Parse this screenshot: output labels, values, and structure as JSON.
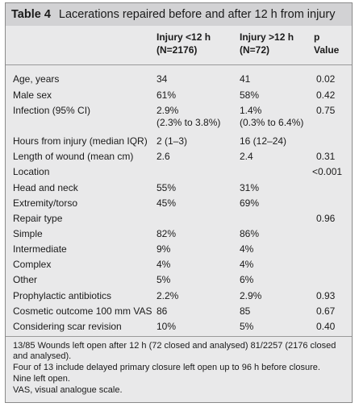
{
  "table": {
    "label": "Table 4",
    "title": "Lacerations repaired before and after 12 h from injury",
    "headers": {
      "col1_line1": "Injury <12 h",
      "col1_line2": "(N=2176)",
      "col2_line1": "Injury >12 h",
      "col2_line2": "(N=72)",
      "col3_line1": "p",
      "col3_line2": "Value"
    },
    "rows": [
      {
        "label": "Age, years",
        "v1": "34",
        "v2": "41",
        "p": "0.02"
      },
      {
        "label": "Male sex",
        "v1": "61%",
        "v2": "58%",
        "p": "0.42"
      },
      {
        "label": "Infection (95% CI)",
        "v1": "2.9%",
        "v1b": "(2.3% to 3.8%)",
        "v2": "1.4%",
        "v2b": "(0.3% to 6.4%)",
        "p": "0.75"
      },
      {
        "label": "Hours from injury (median IQR)",
        "v1": "2 (1–3)",
        "v2": "16 (12–24)",
        "p": ""
      },
      {
        "label": "Length of wound (mean cm)",
        "v1": "2.6",
        "v2": "2.4",
        "p": "0.31"
      },
      {
        "label": "Location",
        "v1": "",
        "v2": "",
        "p": "<0.001"
      },
      {
        "label": "Head and neck",
        "v1": "55%",
        "v2": "31%",
        "p": ""
      },
      {
        "label": "Extremity/torso",
        "v1": "45%",
        "v2": "69%",
        "p": ""
      },
      {
        "label": "Repair type",
        "v1": "",
        "v2": "",
        "p": "0.96"
      },
      {
        "label": "Simple",
        "v1": "82%",
        "v2": "86%",
        "p": ""
      },
      {
        "label": "Intermediate",
        "v1": "9%",
        "v2": "4%",
        "p": ""
      },
      {
        "label": "Complex",
        "v1": "4%",
        "v2": "4%",
        "p": ""
      },
      {
        "label": "Other",
        "v1": "5%",
        "v2": "6%",
        "p": ""
      },
      {
        "label": "Prophylactic antibiotics",
        "v1": "2.2%",
        "v2": "2.9%",
        "p": "0.93"
      },
      {
        "label": "Cosmetic outcome 100 mm VAS",
        "v1": "86",
        "v2": "85",
        "p": "0.67"
      },
      {
        "label": "Considering scar revision",
        "v1": "10%",
        "v2": "5%",
        "p": "0.40"
      }
    ],
    "footnotes": [
      "13/85 Wounds left open after 12 h (72 closed and analysed) 81/2257 (2176 closed and analysed).",
      "Four of 13 include delayed primary closure left open up to 96 h before closure.",
      "Nine left open.",
      "VAS, visual analogue scale."
    ]
  }
}
